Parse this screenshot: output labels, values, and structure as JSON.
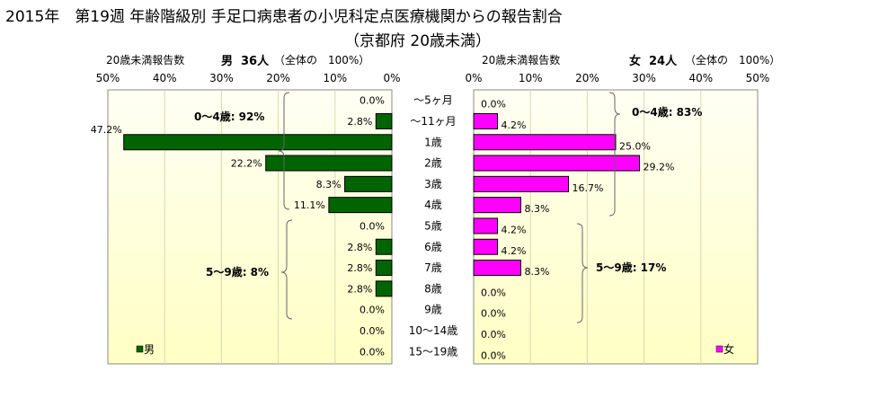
{
  "title": "2015年　第19週 年齢階級別 手足口病患者の小児科定点医療機関からの報告割合",
  "subtitle": "（京都府 20歳未満）",
  "colors": {
    "male": "#006400",
    "female": "#ff00ff",
    "bg_top": "#fffff2",
    "bg_bottom": "#ffffc8"
  },
  "chart_data": {
    "type": "bar",
    "categories": [
      "～5ヶ月",
      "～11ヶ月",
      "1歳",
      "2歳",
      "3歳",
      "4歳",
      "5歳",
      "6歳",
      "7歳",
      "8歳",
      "9歳",
      "10～14歳",
      "15～19歳"
    ],
    "series": [
      {
        "name": "男",
        "header_label": "20歳未満報告数",
        "header_sex": "男",
        "header_count": "36人",
        "header_total": "（全体の　100%）",
        "values": [
          0.0,
          2.8,
          47.2,
          22.2,
          8.3,
          11.1,
          0.0,
          2.8,
          2.8,
          2.8,
          0.0,
          0.0,
          0.0
        ],
        "labels": [
          "0.0%",
          "2.8%",
          "47.2%",
          "22.2%",
          "8.3%",
          "11.1%",
          "0.0%",
          "2.8%",
          "2.8%",
          "2.8%",
          "0.0%",
          "0.0%",
          "0.0%"
        ],
        "group_labels": [
          "0～4歳: 92%",
          "5～9歳: 8%"
        ],
        "legend": "男"
      },
      {
        "name": "女",
        "header_label": "20歳未満報告数",
        "header_sex": "女",
        "header_count": "24人",
        "header_total": "（全体の　100%）",
        "values": [
          0.0,
          4.2,
          25.0,
          29.2,
          16.7,
          8.3,
          4.2,
          4.2,
          8.3,
          0.0,
          0.0,
          0.0,
          0.0
        ],
        "labels": [
          "0.0%",
          "4.2%",
          "25.0%",
          "29.2%",
          "16.7%",
          "8.3%",
          "4.2%",
          "4.2%",
          "8.3%",
          "0.0%",
          "0.0%",
          "0.0%",
          "0.0%"
        ],
        "group_labels": [
          "0～4歳: 83%",
          "5～9歳: 17%"
        ],
        "legend": "女"
      }
    ],
    "xlim": [
      0,
      50
    ],
    "ticks": [
      "50%",
      "40%",
      "30%",
      "20%",
      "10%",
      "0%"
    ],
    "ticks_right": [
      "0%",
      "10%",
      "20%",
      "30%",
      "40%",
      "50%"
    ]
  }
}
